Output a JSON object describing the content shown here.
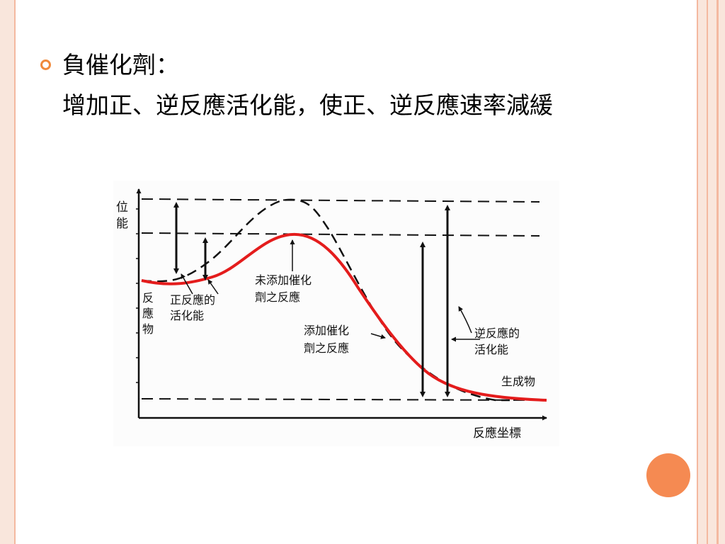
{
  "slide": {
    "bullet_title": "負催化劑：",
    "description": "增加正、逆反應活化能，使正、逆反應速率減緩"
  },
  "diagram": {
    "y_axis_label": [
      "位",
      "能"
    ],
    "x_axis_label": "反應坐標",
    "reactant_label": [
      "反",
      "應",
      "物"
    ],
    "product_label": "生成物",
    "forward_ea_label": [
      "正反應的",
      "活化能"
    ],
    "uncatalyzed_label": [
      "未添加催化",
      "劑之反應"
    ],
    "catalyzed_label": [
      "添加催化",
      "劑之反應"
    ],
    "reverse_ea_label": [
      "逆反應的",
      "活化能"
    ],
    "colors": {
      "catalyzed_curve": "#e41c1c",
      "uncatalyzed_curve": "#111111"
    }
  },
  "decor": {
    "accent": "#f08a3c",
    "frame": "#f4b9a0"
  }
}
